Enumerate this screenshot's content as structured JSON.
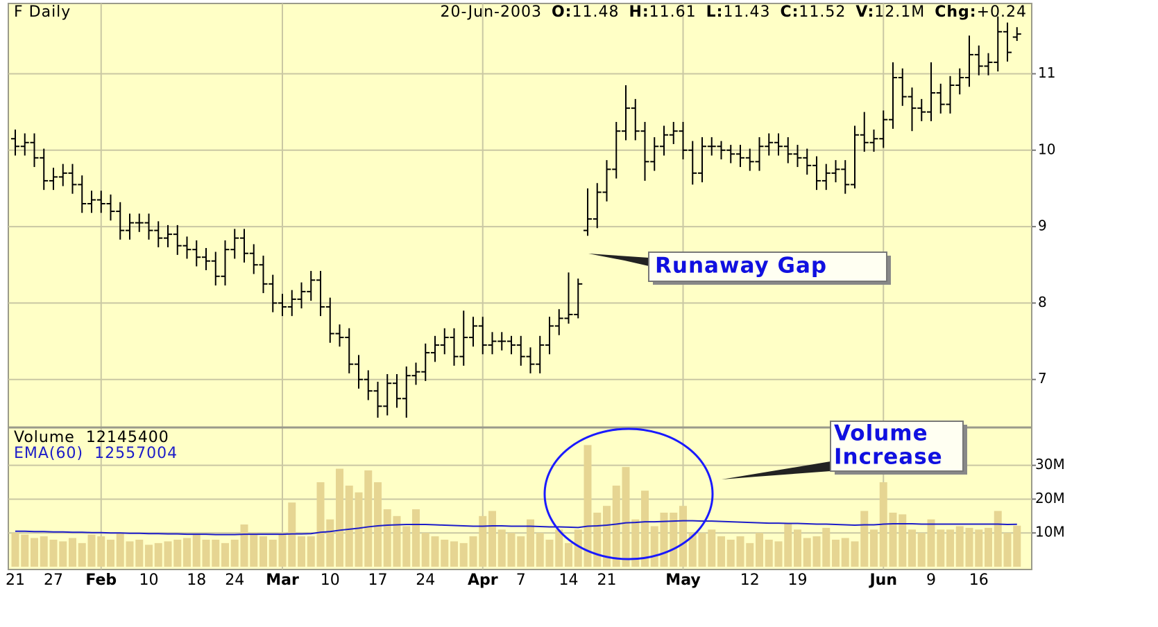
{
  "chart_data": {
    "type": "ohlc",
    "header": {
      "symbol": "F Daily",
      "date": "20-Jun-2003",
      "open_label": "O:",
      "high_label": "H:",
      "low_label": "L:",
      "close_label": "C:",
      "volume_label": "V:",
      "volume_text": "12.1M",
      "change_label": "Chg:",
      "change": "+0.24"
    },
    "annotations": {
      "gap": "Runaway Gap",
      "volume": [
        "Volume",
        "Increase"
      ]
    },
    "volume_title": "Volume",
    "ema_title": "EMA(60)",
    "bar_color": "#000000",
    "volume_color": "#e6d592",
    "ema_color": "#1c1cc8",
    "background": "#ffffc6",
    "grid": true,
    "categories": [
      "21",
      null,
      null,
      null,
      "27",
      null,
      null,
      null,
      null,
      "Feb",
      null,
      null,
      null,
      null,
      "10",
      null,
      null,
      null,
      null,
      "18",
      null,
      null,
      null,
      "24",
      null,
      null,
      null,
      null,
      "Mar",
      null,
      null,
      null,
      null,
      "10",
      null,
      null,
      null,
      null,
      "17",
      null,
      null,
      null,
      null,
      "24",
      null,
      null,
      null,
      null,
      null,
      "Apr",
      null,
      null,
      null,
      "7",
      null,
      null,
      null,
      null,
      "14",
      null,
      null,
      null,
      "21",
      null,
      null,
      null,
      null,
      null,
      null,
      null,
      "May",
      null,
      null,
      null,
      null,
      null,
      null,
      "12",
      null,
      null,
      null,
      null,
      "19",
      null,
      null,
      null,
      null,
      null,
      null,
      null,
      null,
      "Jun",
      null,
      null,
      null,
      null,
      "9",
      null,
      null,
      null,
      null,
      "16",
      null,
      null,
      null,
      null
    ],
    "open": [
      10.15,
      10.05,
      10.1,
      9.9,
      9.6,
      9.65,
      9.7,
      9.55,
      9.3,
      9.35,
      9.3,
      9.2,
      8.95,
      9.05,
      9.05,
      8.95,
      8.85,
      8.9,
      8.75,
      8.7,
      8.6,
      8.55,
      8.35,
      8.7,
      8.85,
      8.65,
      8.5,
      8.25,
      8.0,
      7.95,
      8.05,
      8.15,
      8.3,
      7.95,
      7.6,
      7.55,
      7.2,
      7.0,
      6.85,
      6.65,
      6.95,
      6.75,
      7.05,
      7.1,
      7.35,
      7.45,
      7.55,
      7.3,
      7.55,
      7.7,
      7.45,
      7.5,
      7.5,
      7.45,
      7.3,
      7.2,
      7.45,
      7.7,
      7.8,
      7.85,
      8.95,
      9.1,
      9.45,
      9.75,
      10.25,
      10.55,
      10.25,
      9.85,
      10.05,
      10.2,
      10.25,
      10.0,
      9.7,
      10.05,
      10.05,
      10.0,
      9.95,
      9.9,
      9.85,
      10.05,
      10.1,
      10.05,
      9.95,
      9.9,
      9.8,
      9.6,
      9.7,
      9.75,
      9.55,
      10.2,
      10.1,
      10.15,
      10.4,
      10.95,
      10.7,
      10.55,
      10.5,
      10.75,
      10.6,
      10.85,
      10.95,
      11.25,
      11.1,
      11.15,
      11.55,
      11.48
    ],
    "high": [
      10.27,
      10.22,
      10.22,
      10.02,
      9.77,
      9.82,
      9.82,
      9.67,
      9.47,
      9.47,
      9.42,
      9.32,
      9.17,
      9.17,
      9.17,
      9.07,
      9.02,
      9.02,
      8.87,
      8.82,
      8.72,
      8.67,
      8.82,
      8.97,
      8.97,
      8.77,
      8.62,
      8.37,
      8.12,
      8.17,
      8.27,
      8.42,
      8.42,
      8.07,
      7.72,
      7.67,
      7.32,
      7.12,
      6.97,
      7.07,
      7.07,
      7.17,
      7.22,
      7.47,
      7.57,
      7.67,
      7.67,
      7.9,
      7.82,
      7.82,
      7.62,
      7.62,
      7.57,
      7.57,
      7.42,
      7.57,
      7.82,
      7.92,
      8.4,
      8.32,
      9.5,
      9.57,
      9.87,
      10.37,
      10.85,
      10.67,
      10.37,
      10.17,
      10.32,
      10.37,
      10.37,
      10.12,
      10.17,
      10.17,
      10.12,
      10.07,
      10.07,
      10.02,
      10.17,
      10.22,
      10.22,
      10.17,
      10.07,
      10.02,
      9.92,
      9.82,
      9.87,
      9.87,
      10.32,
      10.5,
      10.27,
      10.52,
      11.15,
      11.07,
      10.82,
      10.67,
      11.15,
      10.87,
      10.97,
      11.07,
      11.5,
      11.37,
      11.27,
      11.75,
      11.67,
      11.61
    ],
    "low": [
      9.93,
      9.93,
      9.78,
      9.48,
      9.48,
      9.53,
      9.43,
      9.18,
      9.18,
      9.18,
      9.08,
      8.83,
      8.83,
      8.93,
      8.83,
      8.73,
      8.73,
      8.63,
      8.58,
      8.48,
      8.43,
      8.23,
      8.23,
      8.58,
      8.53,
      8.38,
      8.13,
      7.88,
      7.83,
      7.83,
      7.93,
      8.03,
      7.83,
      7.48,
      7.43,
      7.08,
      6.88,
      6.73,
      6.5,
      6.53,
      6.63,
      6.5,
      6.93,
      6.98,
      7.23,
      7.33,
      7.18,
      7.18,
      7.43,
      7.33,
      7.33,
      7.38,
      7.33,
      7.18,
      7.08,
      7.08,
      7.33,
      7.58,
      7.73,
      7.8,
      8.88,
      8.98,
      9.33,
      9.63,
      10.13,
      10.13,
      9.6,
      9.73,
      9.93,
      10.08,
      9.88,
      9.55,
      9.58,
      9.93,
      9.88,
      9.83,
      9.78,
      9.73,
      9.73,
      9.93,
      9.93,
      9.83,
      9.78,
      9.68,
      9.48,
      9.48,
      9.58,
      9.43,
      9.5,
      9.98,
      9.98,
      10.03,
      10.28,
      10.58,
      10.25,
      10.38,
      10.38,
      10.48,
      10.48,
      10.73,
      10.83,
      10.98,
      10.98,
      11.03,
      11.16,
      11.43
    ],
    "close": [
      10.05,
      10.1,
      9.9,
      9.6,
      9.65,
      9.7,
      9.55,
      9.3,
      9.35,
      9.3,
      9.2,
      8.95,
      9.05,
      9.05,
      8.95,
      8.85,
      8.9,
      8.75,
      8.7,
      8.6,
      8.55,
      8.35,
      8.7,
      8.85,
      8.65,
      8.5,
      8.25,
      8.0,
      7.95,
      8.05,
      8.15,
      8.3,
      7.95,
      7.6,
      7.55,
      7.2,
      7.0,
      6.85,
      6.65,
      6.95,
      6.75,
      7.05,
      7.1,
      7.35,
      7.45,
      7.55,
      7.3,
      7.55,
      7.7,
      7.45,
      7.5,
      7.5,
      7.45,
      7.3,
      7.2,
      7.45,
      7.7,
      7.8,
      7.85,
      8.25,
      9.1,
      9.45,
      9.75,
      10.25,
      10.55,
      10.25,
      9.85,
      10.05,
      10.2,
      10.25,
      10.0,
      9.7,
      10.05,
      10.05,
      10.0,
      9.95,
      9.9,
      9.85,
      10.05,
      10.1,
      10.05,
      9.95,
      9.9,
      9.8,
      9.6,
      9.7,
      9.75,
      9.55,
      10.2,
      10.1,
      10.15,
      10.4,
      10.95,
      10.7,
      10.55,
      10.5,
      10.75,
      10.6,
      10.85,
      10.95,
      11.25,
      11.1,
      11.15,
      11.55,
      11.28,
      11.52
    ],
    "volume": [
      10000000,
      9500000,
      8500000,
      9000000,
      8000000,
      7500000,
      8500000,
      7000000,
      9500000,
      9000000,
      8000000,
      10000000,
      7500000,
      8000000,
      6500000,
      7000000,
      7500000,
      8000000,
      8500000,
      9500000,
      8000000,
      8000000,
      7000000,
      8000000,
      12500000,
      10000000,
      9000000,
      8000000,
      10000000,
      19000000,
      9000000,
      9000000,
      25000000,
      14000000,
      29000000,
      24000000,
      22000000,
      28500000,
      25000000,
      17000000,
      15000000,
      12000000,
      17000000,
      10000000,
      9000000,
      8000000,
      7500000,
      7000000,
      9000000,
      15000000,
      16500000,
      11000000,
      10000000,
      9000000,
      14000000,
      10000000,
      8000000,
      11000000,
      7000000,
      11000000,
      36000000,
      16000000,
      18000000,
      24000000,
      29500000,
      14000000,
      22500000,
      12000000,
      16000000,
      16000000,
      18000000,
      10000000,
      10000000,
      11000000,
      9000000,
      8000000,
      9000000,
      7000000,
      10000000,
      8000000,
      7500000,
      13000000,
      11000000,
      8500000,
      9000000,
      11500000,
      8000000,
      8500000,
      7500000,
      16500000,
      11000000,
      25000000,
      16000000,
      15500000,
      11000000,
      10000000,
      14000000,
      11000000,
      11000000,
      12000000,
      11500000,
      11000000,
      11500000,
      16500000,
      10000000,
      12145400
    ],
    "ema": [
      10500000,
      10500000,
      10400000,
      10400000,
      10300000,
      10300000,
      10200000,
      10200000,
      10100000,
      10100000,
      10000000,
      10000000,
      9900000,
      9900000,
      9800000,
      9800000,
      9700000,
      9700000,
      9600000,
      9600000,
      9600000,
      9500000,
      9500000,
      9500000,
      9600000,
      9600000,
      9600000,
      9600000,
      9600000,
      9700000,
      9700000,
      9800000,
      10200000,
      10400000,
      10800000,
      11100000,
      11400000,
      11800000,
      12100000,
      12300000,
      12400000,
      12500000,
      12500000,
      12500000,
      12400000,
      12300000,
      12200000,
      12100000,
      12000000,
      12000000,
      12100000,
      12100000,
      12000000,
      12000000,
      12000000,
      11900000,
      11800000,
      11800000,
      11700000,
      11600000,
      12000000,
      12100000,
      12300000,
      12600000,
      13000000,
      13100000,
      13300000,
      13300000,
      13400000,
      13500000,
      13600000,
      13600000,
      13500000,
      13500000,
      13400000,
      13300000,
      13200000,
      13100000,
      13000000,
      12900000,
      12900000,
      12800000,
      12800000,
      12700000,
      12600000,
      12600000,
      12500000,
      12400000,
      12300000,
      12400000,
      12400000,
      12600000,
      12700000,
      12700000,
      12700000,
      12600000,
      12600000,
      12600000,
      12600000,
      12600000,
      12600000,
      12600000,
      12600000,
      12600000,
      12500000,
      12557004
    ],
    "ylim": [
      6.39,
      11.92
    ],
    "yticks": [
      7,
      8,
      9,
      10,
      11
    ],
    "y2lim": [
      0,
      41000000
    ],
    "y2ticks": [
      {
        "value": 10000000,
        "label": "10M"
      },
      {
        "value": 20000000,
        "label": "20M"
      },
      {
        "value": 30000000,
        "label": "30M"
      }
    ]
  }
}
